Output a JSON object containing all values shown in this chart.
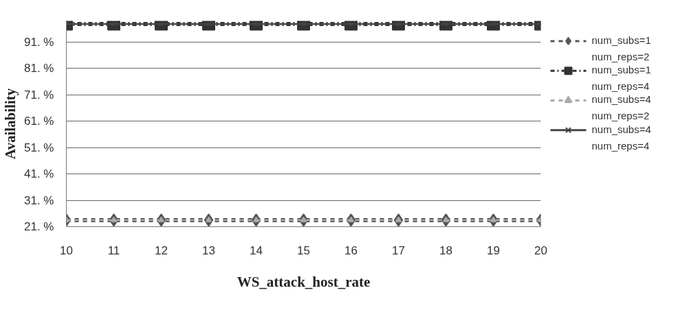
{
  "chart_data": {
    "type": "line",
    "xlabel": "WS_attack_host_rate",
    "ylabel": "Availability",
    "x": [
      10,
      11,
      12,
      13,
      14,
      15,
      16,
      17,
      18,
      19,
      20
    ],
    "xlim": [
      10,
      20
    ],
    "xticks": [
      10,
      11,
      12,
      13,
      14,
      15,
      16,
      17,
      18,
      19,
      20
    ],
    "ylim": [
      21,
      99
    ],
    "yticks": [
      {
        "value": 21,
        "label": "21. %"
      },
      {
        "value": 31,
        "label": "31. %"
      },
      {
        "value": 41,
        "label": "41. %"
      },
      {
        "value": 51,
        "label": "51. %"
      },
      {
        "value": 61,
        "label": "61. %"
      },
      {
        "value": 71,
        "label": "71. %"
      },
      {
        "value": 81,
        "label": "81. %"
      },
      {
        "value": 91,
        "label": "91. %"
      }
    ],
    "grid": "y",
    "legend": "right",
    "series": [
      {
        "name": "num_subs=1\nnum_reps=2",
        "color": "#555555",
        "marker": "diamond",
        "line_style": "dashed",
        "values": [
          23.5,
          23.5,
          23.5,
          23.5,
          23.5,
          23.5,
          23.5,
          23.5,
          23.5,
          23.5,
          23.5
        ]
      },
      {
        "name": "num_subs=1\nnum_reps=4",
        "color": "#333333",
        "marker": "square",
        "line_style": "dashdot",
        "values": [
          97.8,
          97.8,
          97.8,
          97.8,
          97.8,
          97.8,
          97.8,
          97.8,
          97.8,
          97.8,
          97.8
        ]
      },
      {
        "name": "num_subs=4\nnum_reps=2",
        "color": "#aaaaaa",
        "marker": "triangle",
        "line_style": "dashed",
        "values": [
          23.5,
          23.5,
          23.5,
          23.5,
          23.5,
          23.5,
          23.5,
          23.5,
          23.5,
          23.5,
          23.5
        ]
      },
      {
        "name": "num_subs=4\nnum_reps=4",
        "color": "#444444",
        "marker": "x",
        "line_style": "solid",
        "values": [
          97.8,
          97.8,
          97.8,
          97.8,
          97.8,
          97.8,
          97.8,
          97.8,
          97.8,
          97.8,
          97.8
        ]
      }
    ]
  }
}
